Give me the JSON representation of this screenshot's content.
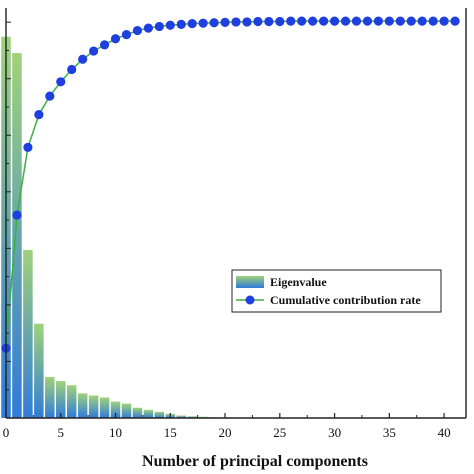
{
  "chart_data": {
    "type": "bar",
    "xlabel": "Number of principal components",
    "xlim": [
      0,
      42
    ],
    "x_ticks": [
      "0",
      "5",
      "10",
      "15",
      "20",
      "25",
      "30",
      "35",
      "40"
    ],
    "grid": false,
    "legend_placement": "right",
    "series": [
      {
        "name": "Eigenvalue",
        "type": "bar",
        "relative_height": [
          0.93,
          0.89,
          0.41,
          0.23,
          0.1,
          0.09,
          0.08,
          0.06,
          0.055,
          0.05,
          0.04,
          0.035,
          0.025,
          0.02,
          0.015,
          0.01,
          0.006,
          0.004,
          0.003,
          0.002,
          0.0015,
          0.001,
          0.001,
          0.001,
          0.0008,
          0.0006,
          0.0005,
          0.0004,
          0.0003,
          0.0003,
          0.0002,
          0.0002,
          0.0002,
          0.0001,
          0.0001,
          0.0001,
          0.0001,
          0.0001,
          0.0001,
          0.0001,
          0.0001
        ]
      },
      {
        "name": "Cumulative contribution rate",
        "type": "line",
        "x": [
          0,
          1,
          2,
          3,
          4,
          5,
          6,
          7,
          8,
          9,
          10,
          11,
          12,
          13,
          14,
          15,
          16,
          17,
          18,
          19,
          20,
          21,
          22,
          23,
          24,
          25,
          26,
          27,
          28,
          29,
          30,
          31,
          32,
          33,
          34,
          35,
          36,
          37,
          38,
          39,
          40,
          41
        ],
        "relative_value": [
          0.17,
          0.495,
          0.66,
          0.74,
          0.785,
          0.82,
          0.85,
          0.875,
          0.895,
          0.91,
          0.925,
          0.935,
          0.945,
          0.951,
          0.955,
          0.958,
          0.96,
          0.962,
          0.963,
          0.964,
          0.965,
          0.966,
          0.966,
          0.967,
          0.967,
          0.967,
          0.968,
          0.968,
          0.968,
          0.968,
          0.968,
          0.968,
          0.968,
          0.968,
          0.968,
          0.968,
          0.968,
          0.968,
          0.968,
          0.968,
          0.968,
          0.968
        ]
      }
    ],
    "colors": {
      "bar_top": "#9fd27a",
      "bar_bottom": "#2f7bd9",
      "line": "#3cb043",
      "marker": "#1f3fe0",
      "axis": "#222222"
    }
  }
}
